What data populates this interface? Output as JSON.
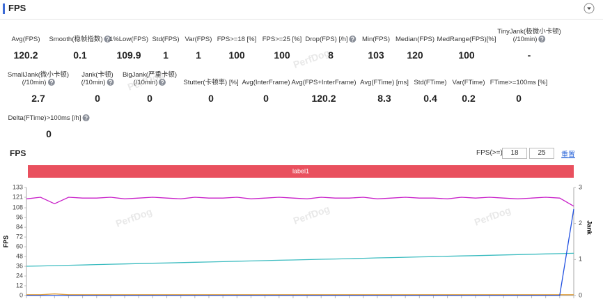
{
  "header": {
    "title": "FPS"
  },
  "watermark": "PerfDog",
  "metrics": [
    [
      {
        "label": [
          "Avg(FPS)"
        ],
        "value": 120.2
      },
      {
        "label": [
          "Smooth(稳帧指数)"
        ],
        "help": true,
        "value": 0.1
      },
      {
        "label": [
          "1%Low(FPS)"
        ],
        "value": 109.9
      },
      {
        "label": [
          "Std(FPS)"
        ],
        "value": 1
      },
      {
        "label": [
          "Var(FPS)"
        ],
        "value": 1
      },
      {
        "label": [
          "FPS>=18 [%]"
        ],
        "value": 100
      },
      {
        "label": [
          "FPS>=25 [%]"
        ],
        "value": 100
      },
      {
        "label": [
          "Drop(FPS) [/h]"
        ],
        "help": true,
        "value": 8
      },
      {
        "label": [
          "Min(FPS)"
        ],
        "value": 103
      },
      {
        "label": [
          "Median(FPS)"
        ],
        "value": 120
      },
      {
        "label": [
          "MedRange(FPS)[%]"
        ],
        "value": 100
      },
      {
        "label": [
          "TinyJank(极微小卡顿)",
          "(/10min)"
        ],
        "help": true,
        "value": "-"
      }
    ],
    [
      {
        "label": [
          "SmallJank(微小卡顿)",
          "(/10min)"
        ],
        "help": true,
        "value": 2.7
      },
      {
        "label": [
          "Jank(卡顿)",
          "(/10min)"
        ],
        "help": true,
        "value": 0
      },
      {
        "label": [
          "BigJank(严重卡顿)",
          "(/10min)"
        ],
        "help": true,
        "value": 0
      },
      {
        "label": [
          "Stutter(卡顿率) [%]"
        ],
        "value": 0
      },
      {
        "label": [
          "Avg(InterFrame)"
        ],
        "value": 0
      },
      {
        "label": [
          "Avg(FPS+InterFrame)"
        ],
        "value": 120.2
      },
      {
        "label": [
          "Avg(FTime) [ms]"
        ],
        "value": 8.3
      },
      {
        "label": [
          "Std(FTime)"
        ],
        "value": 0.4
      },
      {
        "label": [
          "Var(FTime)"
        ],
        "value": 0.2
      },
      {
        "label": [
          "FTime>=100ms [%]"
        ],
        "value": 0
      }
    ],
    [
      {
        "label": [
          "Delta(FTime)>100ms [/h]"
        ],
        "help": true,
        "value": 0
      }
    ]
  ],
  "controls": {
    "label": "FPS(>=)",
    "thresholds": [
      18,
      25
    ],
    "reset": "重置"
  },
  "chart_data": {
    "type": "line",
    "title": "FPS",
    "band_label": "label1",
    "band_color": "#e9505e",
    "ylabel": "FPS",
    "y2label": "Jank",
    "categories": [
      null,
      null,
      null,
      null,
      null,
      null,
      null,
      null,
      null,
      null,
      null,
      null,
      null,
      null,
      null,
      null,
      null,
      null,
      null,
      null,
      null,
      null,
      null,
      null,
      null,
      null,
      null,
      null,
      null,
      null,
      null,
      null,
      null,
      null,
      null,
      null,
      null,
      null,
      null,
      null
    ],
    "series": [
      {
        "color": "#c81ec8",
        "values": [
          119,
          121,
          113,
          121,
          120,
          120,
          121,
          119,
          120,
          121,
          120,
          119,
          121,
          120,
          120,
          121,
          119,
          120,
          121,
          120,
          119,
          121,
          120,
          120,
          121,
          119,
          120,
          121,
          120,
          120,
          119,
          121,
          120,
          121,
          120,
          119,
          120,
          121,
          120,
          110
        ]
      },
      {
        "color": "#3cbcc0",
        "values": [
          36,
          36.4,
          36.8,
          37.2,
          37.6,
          38.1,
          38.5,
          38.9,
          39.3,
          39.7,
          40.1,
          40.5,
          40.9,
          41.3,
          41.7,
          42.2,
          42.6,
          43,
          43.4,
          43.8,
          44.2,
          44.6,
          45,
          45.4,
          45.8,
          46.3,
          46.7,
          47.1,
          47.5,
          47.9,
          48.3,
          48.7,
          49.1,
          49.5,
          49.9,
          50.4,
          50.8,
          51.2,
          51.6,
          52
        ]
      },
      {
        "color": "#e0a040",
        "values": [
          1,
          1,
          2,
          1,
          1,
          1,
          1,
          1,
          1,
          1,
          1,
          1,
          1,
          1,
          1,
          1,
          1,
          1,
          1,
          1,
          1,
          1,
          1,
          1,
          1,
          1,
          1,
          1,
          1,
          1,
          1,
          1,
          1,
          1,
          1,
          1,
          1,
          1,
          1,
          1
        ]
      },
      {
        "color": "#2050e0",
        "axis": "y2",
        "values": [
          0,
          0,
          0,
          0,
          0,
          0,
          0,
          0,
          0,
          0,
          0,
          0,
          0,
          0,
          0,
          0,
          0,
          0,
          0,
          0,
          0,
          0,
          0,
          0,
          0,
          0,
          0,
          0,
          0,
          0,
          0,
          0,
          0,
          0,
          0,
          0,
          0,
          0,
          0,
          2.4
        ]
      }
    ],
    "ylim": [
      0,
      133
    ],
    "yticks": [
      0,
      12,
      24,
      36,
      48,
      60,
      72,
      84,
      96,
      108,
      121,
      133
    ],
    "y2lim": [
      0,
      3
    ],
    "y2ticks": [
      0,
      1,
      2,
      3
    ],
    "grid": false
  }
}
